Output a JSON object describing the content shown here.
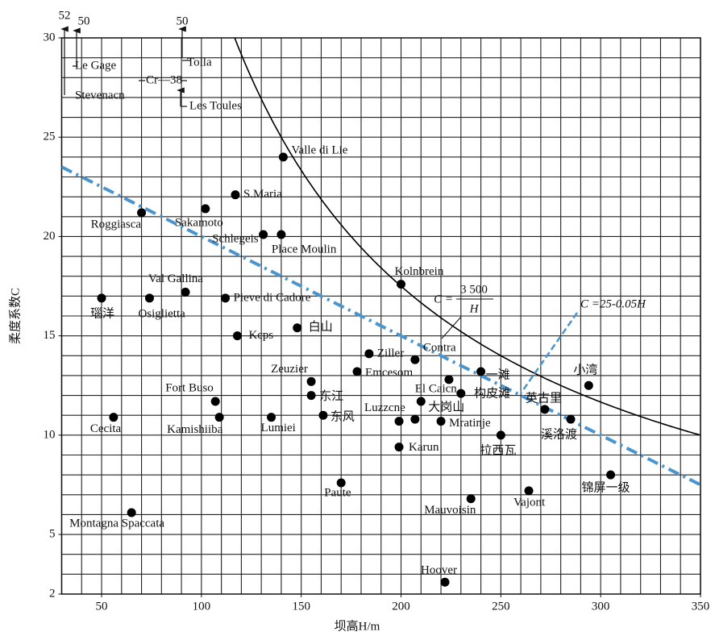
{
  "chart_data": {
    "type": "scatter",
    "x_label": "坝高H/m",
    "y_label": "柔度系数C",
    "xlim": [
      30,
      350
    ],
    "ylim": [
      2,
      30
    ],
    "xticks": [
      50,
      100,
      150,
      200,
      250,
      300,
      350
    ],
    "yticks": [
      2,
      5,
      10,
      15,
      20,
      25,
      30
    ],
    "x_minor_ticks": [
      30,
      40,
      50,
      60,
      70,
      80,
      90,
      100,
      110,
      120,
      130,
      140,
      150,
      160,
      170,
      180,
      190,
      200,
      210,
      220,
      230,
      240,
      250,
      260,
      270,
      280,
      290,
      300,
      310,
      320,
      330,
      340,
      350
    ],
    "y_minor_ticks": [
      2,
      3,
      4,
      5,
      6,
      7,
      8,
      9,
      10,
      11,
      12,
      13,
      14,
      15,
      16,
      17,
      18,
      19,
      20,
      21,
      22,
      23,
      24,
      25,
      26,
      27,
      28,
      29,
      30
    ],
    "grid": true,
    "color": "#000000",
    "labels": [
      "Valle di Lie",
      "S.Maria",
      "Sakamoto",
      "Roggiasca",
      "Schlegeis",
      "Place Moulin",
      "Kolnbrein",
      "瑙洋",
      "Osiglietta",
      "Val Gallina",
      "Pieve di Cadore",
      "Kcps",
      "白山",
      "Ziller",
      "Contra",
      "Emcesom",
      "Zeuzier",
      "一滩",
      "构皮滩",
      "小湾",
      "东江",
      "El Caicn",
      "Fort Buso",
      "大岗山",
      "英古里",
      "Cecita",
      "Kamishiiba",
      "Lumiei",
      "东风",
      "Luzzcne",
      null,
      "Mratinje",
      "溪洛渡",
      "拉西瓦",
      "Karun",
      "锦屏一级",
      "Paute",
      "Mauvoisin",
      "Vajont",
      "Montagna Spaccata",
      "Hoover"
    ],
    "x": [
      141,
      117,
      102,
      70,
      131,
      140,
      200,
      50,
      74,
      92,
      112,
      118,
      148,
      184,
      207,
      178,
      155,
      240,
      224,
      294,
      155,
      230,
      107,
      210,
      272,
      56,
      109,
      135,
      161,
      199,
      207,
      220,
      285,
      250,
      199,
      305,
      170,
      235,
      264,
      65,
      222
    ],
    "values": [
      24.0,
      22.1,
      21.4,
      21.2,
      20.1,
      20.1,
      17.6,
      16.9,
      16.9,
      17.2,
      16.9,
      15.0,
      15.4,
      14.1,
      13.8,
      13.2,
      12.7,
      13.2,
      12.8,
      12.5,
      12.0,
      12.1,
      11.7,
      11.7,
      11.3,
      10.9,
      10.9,
      10.9,
      11.0,
      10.7,
      10.8,
      10.7,
      10.8,
      10.0,
      9.4,
      8.0,
      7.6,
      6.8,
      7.2,
      6.1,
      2.6
    ],
    "curve": {
      "k": {
        "value": 3500,
        "label": "3 500"
      },
      "label_c": "C =",
      "label_h": "H",
      "color": "#000000"
    },
    "line": {
      "intercept": 25,
      "slope": -0.05,
      "label": "C =25-0.05H",
      "color": "#4b95cf"
    },
    "annotations": [
      "52",
      "50",
      "Le Gage",
      "Tolla",
      "Cr—38",
      "Stevenacn",
      "Les Toules",
      "50"
    ]
  }
}
